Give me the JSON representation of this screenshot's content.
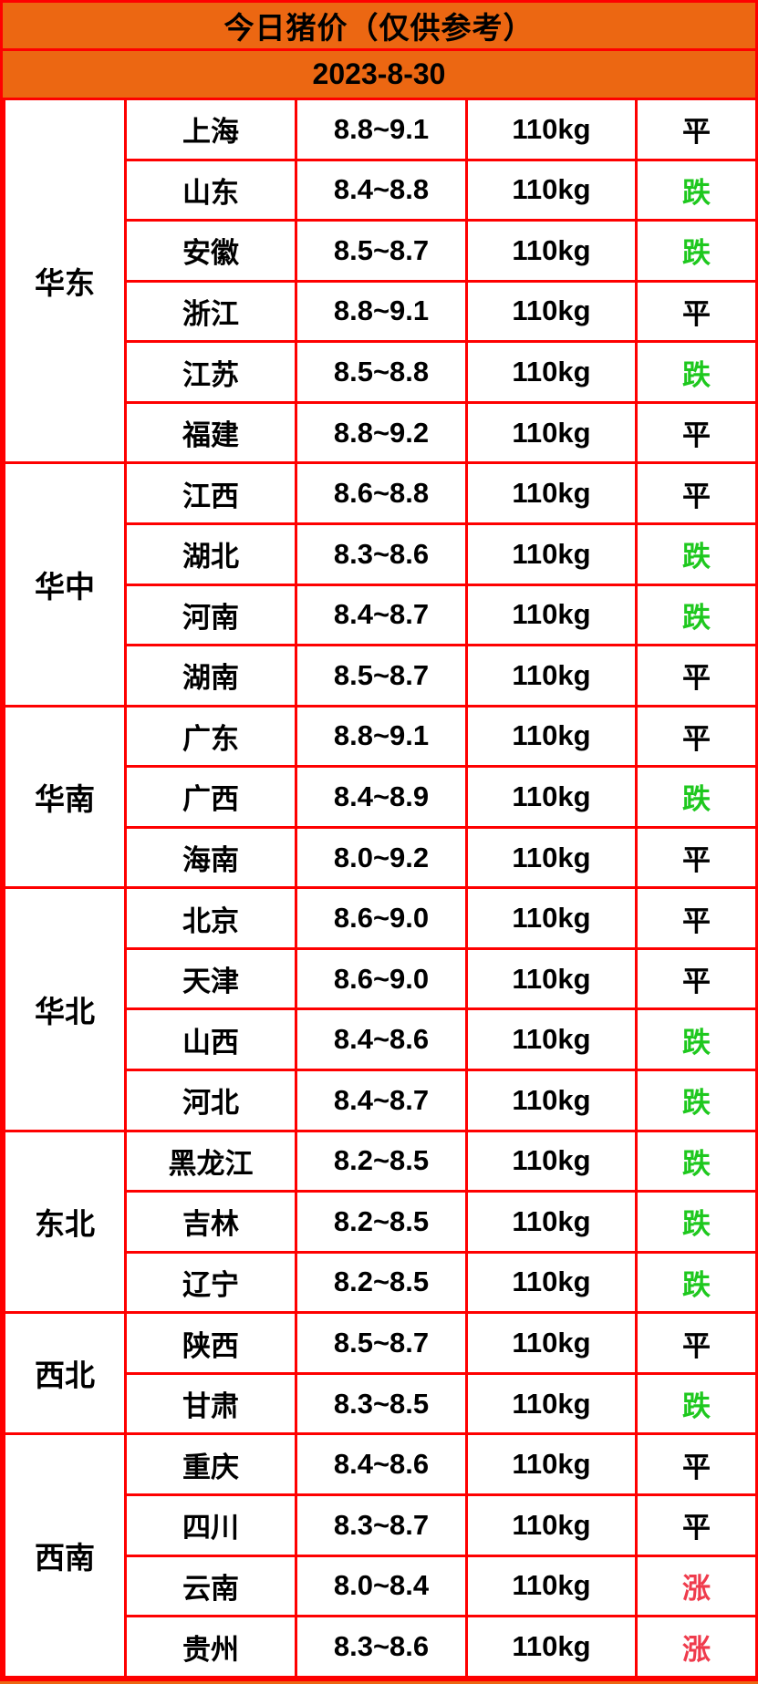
{
  "header": {
    "title": "今日猪价（仅供参考）",
    "date": "2023-8-30"
  },
  "colors": {
    "accent_orange": "#ec6712",
    "border_red": "#fe0000",
    "status_flat": "#000000",
    "status_down": "#1ec81e",
    "status_up": "#ef3b4c"
  },
  "table": {
    "regions": [
      {
        "name": "华东",
        "rows": [
          {
            "province": "上海",
            "price": "8.8~9.1",
            "weight": "110kg",
            "status": "平",
            "trend": "flat"
          },
          {
            "province": "山东",
            "price": "8.4~8.8",
            "weight": "110kg",
            "status": "跌",
            "trend": "down"
          },
          {
            "province": "安徽",
            "price": "8.5~8.7",
            "weight": "110kg",
            "status": "跌",
            "trend": "down"
          },
          {
            "province": "浙江",
            "price": "8.8~9.1",
            "weight": "110kg",
            "status": "平",
            "trend": "flat"
          },
          {
            "province": "江苏",
            "price": "8.5~8.8",
            "weight": "110kg",
            "status": "跌",
            "trend": "down"
          },
          {
            "province": "福建",
            "price": "8.8~9.2",
            "weight": "110kg",
            "status": "平",
            "trend": "flat"
          }
        ]
      },
      {
        "name": "华中",
        "rows": [
          {
            "province": "江西",
            "price": "8.6~8.8",
            "weight": "110kg",
            "status": "平",
            "trend": "flat"
          },
          {
            "province": "湖北",
            "price": "8.3~8.6",
            "weight": "110kg",
            "status": "跌",
            "trend": "down"
          },
          {
            "province": "河南",
            "price": "8.4~8.7",
            "weight": "110kg",
            "status": "跌",
            "trend": "down"
          },
          {
            "province": "湖南",
            "price": "8.5~8.7",
            "weight": "110kg",
            "status": "平",
            "trend": "flat"
          }
        ]
      },
      {
        "name": "华南",
        "rows": [
          {
            "province": "广东",
            "price": "8.8~9.1",
            "weight": "110kg",
            "status": "平",
            "trend": "flat"
          },
          {
            "province": "广西",
            "price": "8.4~8.9",
            "weight": "110kg",
            "status": "跌",
            "trend": "down"
          },
          {
            "province": "海南",
            "price": "8.0~9.2",
            "weight": "110kg",
            "status": "平",
            "trend": "flat"
          }
        ]
      },
      {
        "name": "华北",
        "rows": [
          {
            "province": "北京",
            "price": "8.6~9.0",
            "weight": "110kg",
            "status": "平",
            "trend": "flat"
          },
          {
            "province": "天津",
            "price": "8.6~9.0",
            "weight": "110kg",
            "status": "平",
            "trend": "flat"
          },
          {
            "province": "山西",
            "price": "8.4~8.6",
            "weight": "110kg",
            "status": "跌",
            "trend": "down"
          },
          {
            "province": "河北",
            "price": "8.4~8.7",
            "weight": "110kg",
            "status": "跌",
            "trend": "down"
          }
        ]
      },
      {
        "name": "东北",
        "rows": [
          {
            "province": "黑龙江",
            "price": "8.2~8.5",
            "weight": "110kg",
            "status": "跌",
            "trend": "down"
          },
          {
            "province": "吉林",
            "price": "8.2~8.5",
            "weight": "110kg",
            "status": "跌",
            "trend": "down"
          },
          {
            "province": "辽宁",
            "price": "8.2~8.5",
            "weight": "110kg",
            "status": "跌",
            "trend": "down"
          }
        ]
      },
      {
        "name": "西北",
        "rows": [
          {
            "province": "陕西",
            "price": "8.5~8.7",
            "weight": "110kg",
            "status": "平",
            "trend": "flat"
          },
          {
            "province": "甘肃",
            "price": "8.3~8.5",
            "weight": "110kg",
            "status": "跌",
            "trend": "down"
          }
        ]
      },
      {
        "name": "西南",
        "rows": [
          {
            "province": "重庆",
            "price": "8.4~8.6",
            "weight": "110kg",
            "status": "平",
            "trend": "flat"
          },
          {
            "province": "四川",
            "price": "8.3~8.7",
            "weight": "110kg",
            "status": "平",
            "trend": "flat"
          },
          {
            "province": "云南",
            "price": "8.0~8.4",
            "weight": "110kg",
            "status": "涨",
            "trend": "up"
          },
          {
            "province": "贵州",
            "price": "8.3~8.6",
            "weight": "110kg",
            "status": "涨",
            "trend": "up"
          }
        ]
      }
    ]
  }
}
